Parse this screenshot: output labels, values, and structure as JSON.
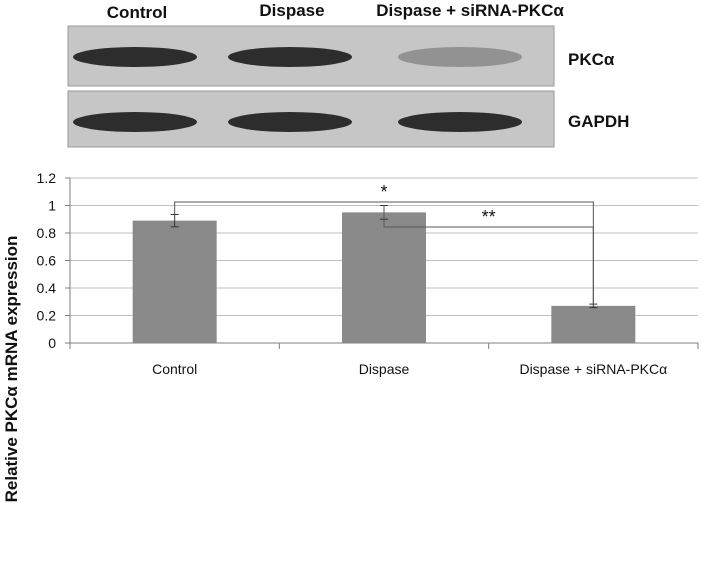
{
  "blot": {
    "lane_labels": [
      "Control",
      "Dispase",
      "Dispase + siRNA-PKCα"
    ],
    "rows": [
      {
        "label": "PKCα",
        "intensities": [
          1.0,
          1.0,
          0.35
        ]
      },
      {
        "label": "GAPDH",
        "intensities": [
          1.0,
          1.0,
          1.0
        ]
      }
    ]
  },
  "chart_data": {
    "type": "bar",
    "categories": [
      "Control",
      "Dispase",
      "Dispase + siRNA-PKCα"
    ],
    "values": [
      0.89,
      0.95,
      0.27
    ],
    "errors": [
      0.045,
      0.05,
      0.013
    ],
    "ylabel": "Relative PKCα mRNA expression",
    "xlabel": "",
    "ylim": [
      0,
      1.2
    ],
    "yticks": [
      "0",
      "0.2",
      "0.4",
      "0.6",
      "0.8",
      "1",
      "1.2"
    ],
    "grid": true,
    "bar_color": "#8a8a8a",
    "significance": [
      {
        "from": "Control",
        "to": "Dispase + siRNA-PKCα",
        "label": "*"
      },
      {
        "from": "Dispase",
        "to": "Dispase + siRNA-PKCα",
        "label": "**"
      }
    ]
  }
}
